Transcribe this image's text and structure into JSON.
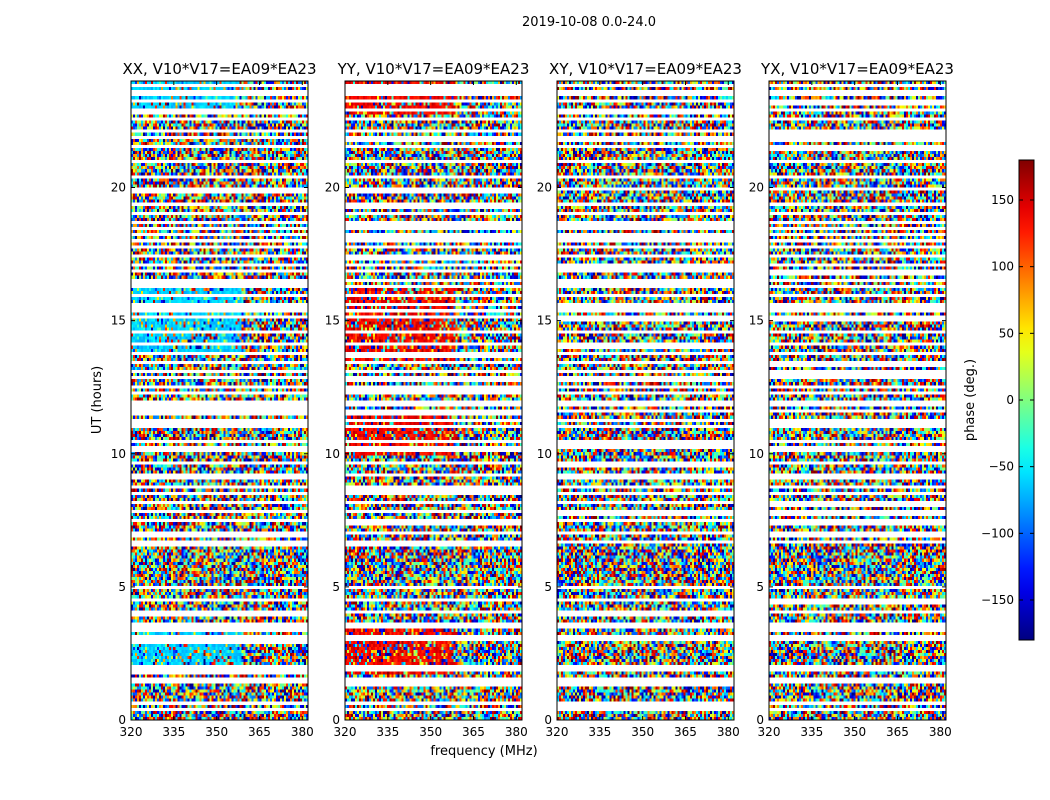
{
  "chart_data": {
    "type": "heatmap",
    "suptitle": "2019-10-08 0.0-24.0",
    "xlabel": "frequency (MHz)",
    "ylabel": "UT (hours)",
    "xlim": [
      320,
      382
    ],
    "ylim": [
      0,
      24
    ],
    "xticks": [
      320,
      335,
      350,
      365,
      380
    ],
    "yticks": [
      0,
      5,
      10,
      15,
      20
    ],
    "colormap": "jet",
    "colorbar": {
      "label": "phase (deg.)",
      "range": [
        -180,
        180
      ],
      "ticks": [
        -150,
        -100,
        -50,
        0,
        50,
        100,
        150
      ],
      "tick_labels": [
        "−150",
        "−100",
        "−50",
        "0",
        "50",
        "100",
        "150"
      ]
    },
    "panels": [
      {
        "title": "XX, V10*V17=EA09*EA23",
        "bias": "cyan-lowband"
      },
      {
        "title": "YY, V10*V17=EA09*EA23",
        "bias": "red-lowband"
      },
      {
        "title": "XY, V10*V17=EA09*EA23",
        "bias": "none"
      },
      {
        "title": "YX, V10*V17=EA09*EA23",
        "bias": "none"
      }
    ],
    "flagged_ut_hours": [
      0.5,
      0.65,
      1.45,
      1.6,
      1.95,
      2.1,
      3.05,
      3.25,
      3.5,
      3.7,
      4.1,
      4.6,
      5.05,
      6.75,
      7.1,
      7.5,
      7.85,
      8.25,
      8.55,
      8.85,
      9.3,
      9.75,
      10.3,
      10.55,
      11.05,
      11.35,
      11.6,
      11.9,
      12.05,
      12.3,
      12.6,
      12.9,
      13.2,
      13.45,
      13.8,
      14.2,
      14.65,
      15.15,
      15.4,
      15.7,
      16.05,
      16.35,
      16.6,
      16.9,
      17.15,
      17.5,
      17.8,
      18.05,
      18.25,
      18.55,
      18.8,
      19.05,
      19.45,
      20.0,
      20.5,
      21.05,
      21.55,
      21.9,
      22.2,
      22.65,
      23.0,
      23.35,
      23.55,
      23.7,
      23.9
    ]
  }
}
